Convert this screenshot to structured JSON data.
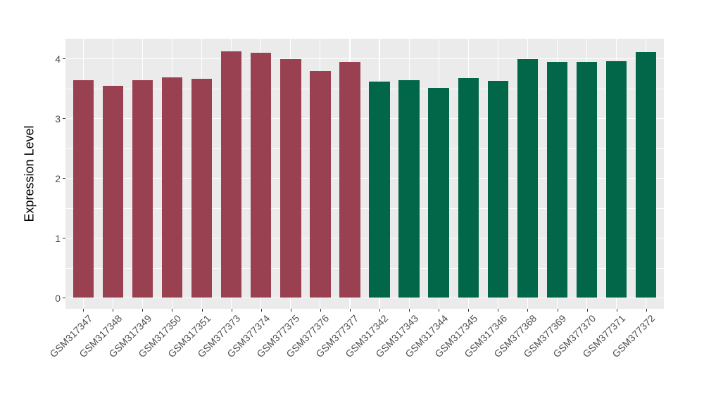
{
  "figure": {
    "background": "#FFFFFF",
    "panel_background": "#EBEBEB",
    "grid_color": "#FFFFFF",
    "axis_text_color": "#4D4D4D",
    "axis_title_color": "#000000",
    "tick_color": "#333333"
  },
  "chart_data": {
    "type": "bar",
    "title": "",
    "xlabel": "",
    "ylabel": "Expression Level",
    "legend": "none",
    "grid": true,
    "x_label_rotation_deg": 45,
    "yticks": [
      0,
      1,
      2,
      3,
      4
    ],
    "ytick_labels": [
      "0",
      "1",
      "2",
      "3",
      "4"
    ],
    "minor_yticks": [
      0.5,
      1.5,
      2.5,
      3.5
    ],
    "ylim_display": [
      -0.18,
      4.34
    ],
    "categories": [
      "GSM317347",
      "GSM317348",
      "GSM317349",
      "GSM317350",
      "GSM317351",
      "GSM377373",
      "GSM377374",
      "GSM377375",
      "GSM377376",
      "GSM377377",
      "GSM317342",
      "GSM317343",
      "GSM317344",
      "GSM317345",
      "GSM317346",
      "GSM377368",
      "GSM377369",
      "GSM377370",
      "GSM377371",
      "GSM377372"
    ],
    "values": [
      3.64,
      3.55,
      3.64,
      3.69,
      3.66,
      4.12,
      4.1,
      3.99,
      3.79,
      3.94,
      3.62,
      3.64,
      3.51,
      3.68,
      3.63,
      3.99,
      3.95,
      3.94,
      3.96,
      4.11
    ],
    "bar_colors": [
      "#9A4151",
      "#9A4151",
      "#9A4151",
      "#9A4151",
      "#9A4151",
      "#9A4151",
      "#9A4151",
      "#9A4151",
      "#9A4151",
      "#9A4151",
      "#026648",
      "#026648",
      "#026648",
      "#026648",
      "#026648",
      "#026648",
      "#026648",
      "#026648",
      "#026648",
      "#026648"
    ],
    "palette": {
      "maroon_group": "#9A4151",
      "green_group": "#026648"
    }
  }
}
